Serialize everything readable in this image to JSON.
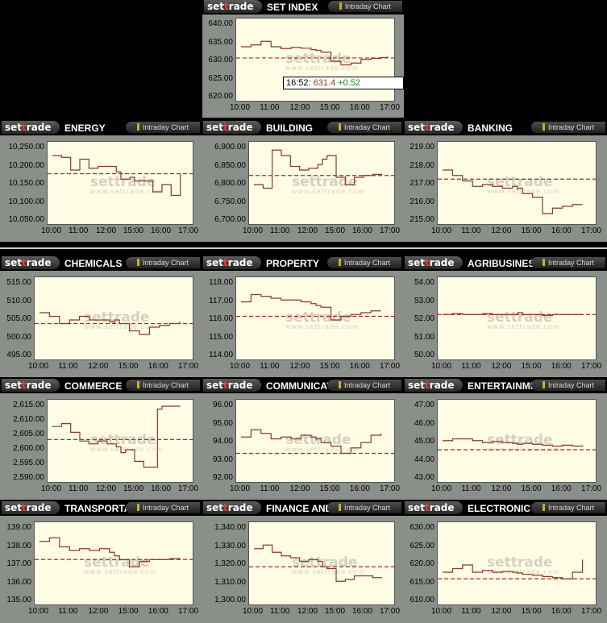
{
  "brand": {
    "pre": "set",
    "accent": "t",
    "post": "rade",
    "watermark_url": "www.settrade.com"
  },
  "badge_label": "Intraday Chart",
  "tooltip": {
    "time": "16:52",
    "price": "631.4",
    "change": "+0.52"
  },
  "colors": {
    "line": "#8b3a1e",
    "ref": "#b0281e",
    "bg": "#fffde6",
    "accent": "#e8423c"
  },
  "chart_data": [
    {
      "name": "SET INDEX",
      "type": "line",
      "ylim": [
        620,
        640
      ],
      "yticks": [
        "620.00",
        "625.00",
        "630.00",
        "635.00",
        "640.00"
      ],
      "prev_close": 630.9,
      "xticks": [
        "10:00",
        "11:00",
        "12:00",
        "15:00",
        "16:00",
        "17:00"
      ],
      "x": [
        "10:00",
        "10:20",
        "10:40",
        "11:00",
        "11:20",
        "11:40",
        "12:00",
        "12:20",
        "12:30",
        "14:30",
        "14:40",
        "15:00",
        "15:20",
        "15:40",
        "16:00",
        "16:20",
        "16:40",
        "16:52"
      ],
      "y": [
        634.0,
        634.5,
        635.5,
        634.0,
        633.5,
        633.8,
        633.6,
        633.2,
        633.0,
        633.0,
        632.5,
        630.0,
        629.0,
        629.5,
        630.5,
        630.8,
        631.0,
        631.4
      ]
    },
    {
      "name": "ENERGY",
      "type": "line",
      "ylim": [
        10050,
        10250
      ],
      "yticks": [
        "10,050.00",
        "10,100.00",
        "10,150.00",
        "10,200.00",
        "10,250.00"
      ],
      "prev_close": 10180,
      "xticks": [
        "10:00",
        "11:00",
        "12:00",
        "15:00",
        "16:00",
        "17:00"
      ],
      "x": [
        "10:00",
        "10:20",
        "10:40",
        "11:00",
        "11:20",
        "11:40",
        "12:00",
        "12:20",
        "12:30",
        "14:30",
        "14:50",
        "15:00",
        "15:20",
        "15:40",
        "16:00",
        "16:20",
        "16:40"
      ],
      "y": [
        10230,
        10225,
        10190,
        10220,
        10195,
        10200,
        10200,
        10185,
        10175,
        10165,
        10170,
        10160,
        10160,
        10130,
        10150,
        10120,
        10180
      ]
    },
    {
      "name": "BUILDING",
      "type": "line",
      "ylim": [
        6700,
        6900
      ],
      "yticks": [
        "6,700.00",
        "6,750.00",
        "6,800.00",
        "6,850.00",
        "6,900.00"
      ],
      "prev_close": 6825,
      "xticks": [
        "10:00",
        "11:00",
        "12:00",
        "15:00",
        "16:00",
        "17:00"
      ],
      "x": [
        "10:00",
        "10:20",
        "10:40",
        "11:00",
        "11:20",
        "11:40",
        "12:00",
        "12:20",
        "12:30",
        "14:30",
        "14:40",
        "15:00",
        "15:20",
        "15:40",
        "16:00",
        "16:20",
        "16:40"
      ],
      "y": [
        6800,
        6790,
        6895,
        6880,
        6850,
        6840,
        6845,
        6855,
        6860,
        6870,
        6880,
        6820,
        6800,
        6820,
        6825,
        6828,
        6830
      ]
    },
    {
      "name": "BANKING",
      "type": "line",
      "ylim": [
        215,
        219
      ],
      "yticks": [
        "215.00",
        "216.00",
        "217.00",
        "218.00",
        "219.00"
      ],
      "prev_close": 217.3,
      "xticks": [
        "10:00",
        "11:00",
        "12:00",
        "15:00",
        "16:00",
        "17:00"
      ],
      "x": [
        "10:00",
        "10:20",
        "10:40",
        "11:00",
        "11:20",
        "11:40",
        "12:00",
        "12:20",
        "12:30",
        "14:30",
        "14:40",
        "15:00",
        "15:20",
        "15:40",
        "16:00",
        "16:20",
        "16:40"
      ],
      "y": [
        217.8,
        217.5,
        217.2,
        216.9,
        217.0,
        216.9,
        216.8,
        216.9,
        216.7,
        216.8,
        216.5,
        216.3,
        215.4,
        215.7,
        215.8,
        215.9,
        215.9
      ]
    },
    {
      "name": "CHEMICALS",
      "type": "line",
      "ylim": [
        495,
        515
      ],
      "yticks": [
        "495.00",
        "500.00",
        "505.00",
        "510.00",
        "515.00"
      ],
      "prev_close": 504,
      "xticks": [
        "10:00",
        "11:00",
        "12:00",
        "15:00",
        "16:00",
        "17:00"
      ],
      "x": [
        "10:00",
        "10:20",
        "10:40",
        "11:00",
        "11:20",
        "11:40",
        "12:00",
        "12:20",
        "12:30",
        "14:30",
        "14:40",
        "15:00",
        "15:20",
        "15:40",
        "16:00",
        "16:20",
        "16:40"
      ],
      "y": [
        507,
        506,
        504,
        505,
        506,
        505,
        505,
        504.5,
        504,
        505,
        504,
        502,
        501,
        503,
        503.5,
        504,
        504.5
      ]
    },
    {
      "name": "PROPERTY",
      "type": "line",
      "ylim": [
        114,
        118
      ],
      "yticks": [
        "114.00",
        "115.00",
        "116.00",
        "117.00",
        "118.00"
      ],
      "prev_close": 116.2,
      "xticks": [
        "10:00",
        "11:00",
        "12:00",
        "15:00",
        "16:00",
        "17:00"
      ],
      "x": [
        "10:00",
        "10:20",
        "10:40",
        "11:00",
        "11:20",
        "11:40",
        "12:00",
        "12:20",
        "12:30",
        "14:30",
        "14:40",
        "15:00",
        "15:20",
        "15:40",
        "16:00",
        "16:20",
        "16:40"
      ],
      "y": [
        117.0,
        117.4,
        117.3,
        117.2,
        117.1,
        117.1,
        117.0,
        116.9,
        116.9,
        116.8,
        116.7,
        116.0,
        116.2,
        116.3,
        116.4,
        116.5,
        116.5
      ]
    },
    {
      "name": "AGRIBUSINESS",
      "type": "line",
      "ylim": [
        50,
        54
      ],
      "yticks": [
        "50.00",
        "51.00",
        "52.00",
        "53.00",
        "54.00"
      ],
      "prev_close": 52.3,
      "xticks": [
        "10:00",
        "11:00",
        "12:00",
        "15:00",
        "16:00",
        "17:00"
      ],
      "x": [
        "10:00",
        "10:20",
        "10:40",
        "11:00",
        "11:20",
        "11:40",
        "12:00",
        "12:20",
        "12:30",
        "14:30",
        "14:40",
        "15:00",
        "15:20",
        "15:40",
        "16:00",
        "16:20",
        "16:40"
      ],
      "y": [
        52.3,
        52.35,
        52.3,
        52.3,
        52.35,
        52.3,
        52.3,
        52.3,
        52.35,
        52.4,
        52.3,
        52.3,
        52.25,
        52.3,
        52.3,
        52.3,
        52.3
      ]
    },
    {
      "name": "COMMERCE",
      "type": "line",
      "ylim": [
        2590,
        2615
      ],
      "yticks": [
        "2,590.00",
        "2,595.00",
        "2,600.00",
        "2,605.00",
        "2,610.00",
        "2,615.00"
      ],
      "prev_close": 2603.5,
      "xticks": [
        "10:00",
        "11:00",
        "12:00",
        "15:00",
        "16:00",
        "17:00"
      ],
      "x": [
        "10:00",
        "10:20",
        "10:40",
        "11:00",
        "11:20",
        "11:40",
        "12:00",
        "12:20",
        "12:30",
        "14:30",
        "14:40",
        "15:00",
        "15:20",
        "15:40",
        "15:50",
        "16:00",
        "16:20",
        "16:40"
      ],
      "y": [
        2608,
        2609,
        2606,
        2603,
        2602,
        2603,
        2602,
        2601,
        2600,
        2599,
        2600,
        2596,
        2594,
        2594,
        2614,
        2615,
        2615,
        2615
      ]
    },
    {
      "name": "COMMUNICATION",
      "type": "line",
      "ylim": [
        92,
        96
      ],
      "yticks": [
        "92.00",
        "93.00",
        "94.00",
        "95.00",
        "96.00"
      ],
      "prev_close": 93.4,
      "xticks": [
        "10:00",
        "11:00",
        "12:00",
        "15:00",
        "16:00",
        "17:00"
      ],
      "x": [
        "10:00",
        "10:20",
        "10:40",
        "11:00",
        "11:20",
        "11:40",
        "12:00",
        "12:20",
        "12:30",
        "14:30",
        "14:40",
        "15:00",
        "15:20",
        "15:40",
        "16:00",
        "16:20",
        "16:40"
      ],
      "y": [
        94.3,
        94.7,
        94.5,
        94.2,
        94.3,
        94.2,
        94.4,
        94.3,
        94.1,
        94.2,
        94.0,
        93.8,
        93.4,
        93.7,
        94.0,
        94.4,
        94.5
      ]
    },
    {
      "name": "ENTERTAINMENT",
      "type": "line",
      "ylim": [
        43,
        47
      ],
      "yticks": [
        "43.00",
        "44.00",
        "45.00",
        "46.00",
        "47.00"
      ],
      "prev_close": 44.6,
      "xticks": [
        "10:00",
        "11:00",
        "12:00",
        "15:00",
        "16:00",
        "17:00"
      ],
      "x": [
        "10:00",
        "10:20",
        "10:40",
        "11:00",
        "11:20",
        "11:40",
        "12:00",
        "12:20",
        "12:30",
        "14:30",
        "14:40",
        "15:00",
        "15:20",
        "15:40",
        "16:00",
        "16:20",
        "16:40"
      ],
      "y": [
        45.1,
        45.2,
        45.2,
        45.1,
        45.0,
        45.05,
        45.0,
        44.95,
        45.0,
        44.9,
        44.95,
        44.9,
        44.85,
        44.8,
        44.85,
        44.8,
        44.85
      ]
    },
    {
      "name": "TRANSPORTATION",
      "type": "line",
      "ylim": [
        135,
        139
      ],
      "yticks": [
        "135.00",
        "136.00",
        "137.00",
        "138.00",
        "139.00"
      ],
      "prev_close": 137.3,
      "xticks": [
        "10:00",
        "11:00",
        "12:00",
        "15:00",
        "16:00",
        "17:00"
      ],
      "x": [
        "10:00",
        "10:20",
        "10:40",
        "11:00",
        "11:20",
        "11:40",
        "12:00",
        "12:20",
        "12:30",
        "14:30",
        "14:40",
        "15:00",
        "15:20",
        "15:40",
        "16:00",
        "16:20",
        "16:40"
      ],
      "y": [
        138.3,
        138.5,
        138.0,
        137.8,
        137.9,
        137.8,
        137.9,
        137.7,
        137.6,
        137.5,
        137.3,
        136.9,
        137.2,
        137.3,
        137.3,
        137.35,
        137.4
      ]
    },
    {
      "name": "FINANCE AND SECURITIES",
      "type": "line",
      "ylim": [
        1300,
        1340
      ],
      "yticks": [
        "1,300.00",
        "1,310.00",
        "1,320.00",
        "1,330.00",
        "1,340.00"
      ],
      "prev_close": 1319,
      "xticks": [
        "10:00",
        "11:00",
        "12:00",
        "15:00",
        "16:00",
        "17:00"
      ],
      "x": [
        "10:00",
        "10:20",
        "10:40",
        "11:00",
        "11:20",
        "11:40",
        "12:00",
        "12:20",
        "12:30",
        "14:30",
        "14:40",
        "15:00",
        "15:20",
        "15:40",
        "16:00",
        "16:20",
        "16:40"
      ],
      "y": [
        1329,
        1331,
        1327,
        1325,
        1324,
        1322,
        1323,
        1322,
        1320,
        1319,
        1318,
        1311,
        1312,
        1314,
        1314,
        1313,
        1313
      ]
    },
    {
      "name": "ELECTRONIC",
      "type": "line",
      "ylim": [
        610,
        630
      ],
      "yticks": [
        "610.00",
        "615.00",
        "620.00",
        "625.00",
        "630.00"
      ],
      "prev_close": 616.2,
      "xticks": [
        "10:00",
        "11:00",
        "12:00",
        "15:00",
        "16:00",
        "17:00"
      ],
      "x": [
        "10:00",
        "10:20",
        "10:40",
        "11:00",
        "11:20",
        "11:40",
        "12:00",
        "12:20",
        "12:30",
        "14:30",
        "14:40",
        "15:00",
        "15:20",
        "15:40",
        "16:00",
        "16:20",
        "16:40"
      ],
      "y": [
        618,
        619,
        620,
        618,
        618.5,
        618,
        618.2,
        618.0,
        617.5,
        617.8,
        617.4,
        617.2,
        616.8,
        616.5,
        616.2,
        618.0,
        621.5
      ]
    }
  ]
}
